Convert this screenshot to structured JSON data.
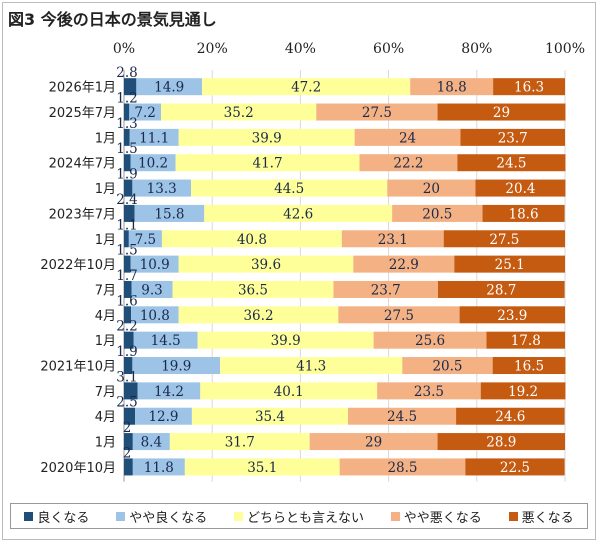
{
  "chart_data": {
    "type": "bar",
    "orientation": "horizontal",
    "stacked": "percent",
    "title": "図3 今後の日本の景気見通し",
    "categories": [
      "2026年1月",
      "2025年7月",
      "1月",
      "2024年7月",
      "1月",
      "2023年7月",
      "1月",
      "2022年10月",
      "7月",
      "4月",
      "1月",
      "2021年10月",
      "7月",
      "4月",
      "1月",
      "2020年10月"
    ],
    "x_ticks": [
      "0%",
      "20%",
      "40%",
      "60%",
      "80%",
      "100%"
    ],
    "xlim": [
      0,
      100
    ],
    "grid": true,
    "legend_position": "bottom",
    "series": [
      {
        "name": "良くなる",
        "color": "#1f4e79",
        "values": [
          2.8,
          1.2,
          1.3,
          1.5,
          1.9,
          2.4,
          1.1,
          1.5,
          1.7,
          1.6,
          2.2,
          1.9,
          3.1,
          2.5,
          2.0,
          2.0
        ]
      },
      {
        "name": "やや良くなる",
        "color": "#9dc3e6",
        "values": [
          14.9,
          7.2,
          11.1,
          10.2,
          13.3,
          15.8,
          7.5,
          10.9,
          9.3,
          10.8,
          14.5,
          19.9,
          14.2,
          12.9,
          8.4,
          11.8
        ]
      },
      {
        "name": "どちらとも言えない",
        "color": "#ffff99",
        "values": [
          47.2,
          35.2,
          39.9,
          41.7,
          44.5,
          42.6,
          40.8,
          39.6,
          36.5,
          36.2,
          39.9,
          41.3,
          40.1,
          35.4,
          31.7,
          35.1
        ]
      },
      {
        "name": "やや悪くなる",
        "color": "#f4b183",
        "values": [
          18.8,
          27.5,
          24.0,
          22.2,
          20.0,
          20.5,
          23.1,
          22.9,
          23.7,
          27.5,
          25.6,
          20.5,
          23.5,
          24.5,
          29.0,
          28.5
        ]
      },
      {
        "name": "悪くなる",
        "color": "#c55a11",
        "values": [
          16.3,
          29.0,
          23.7,
          24.5,
          20.4,
          18.6,
          27.5,
          25.1,
          28.7,
          23.9,
          17.8,
          16.5,
          19.2,
          24.6,
          28.9,
          22.5
        ]
      }
    ]
  }
}
